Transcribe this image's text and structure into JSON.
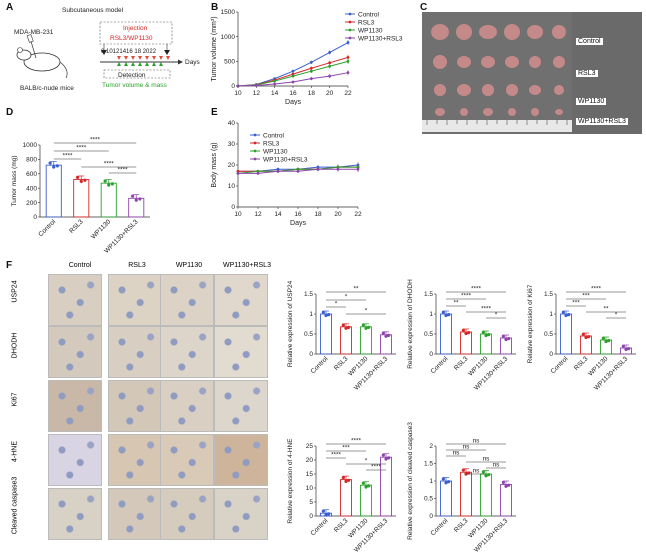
{
  "figure": {
    "panel_labels": [
      "A",
      "B",
      "C",
      "D",
      "E",
      "F"
    ]
  },
  "panel_a": {
    "title": "Subcutaneous model",
    "cell_line": "MDA-MB-231",
    "mouse": "BALB/c-nude mice",
    "injection_label": "Injection",
    "injection_drugs": "RSL3/WP1130",
    "timeline_ticks": "0  10121416 18  2022",
    "days_label": "Days",
    "detection_label": "Detection",
    "detection_sub": "Tumor volume & mass",
    "colors": {
      "injection": "#d62728",
      "detection": "#2ca02c",
      "marker": "#e0483a"
    }
  },
  "panel_c": {
    "row_labels": [
      "Control",
      "RSL3",
      "WP1130",
      "WP1130+RSL3"
    ],
    "tumor_color": "#c98b8b",
    "background": "#6a6a6a"
  },
  "panel_f": {
    "col_labels": [
      "Control",
      "RSL3",
      "WP1130",
      "WP1130+RSL3"
    ],
    "row_labels": [
      "USP24",
      "DHODH",
      "Ki67",
      "4-HNE",
      "Cleaved caspase3"
    ]
  },
  "chart_data": [
    {
      "id": "B",
      "type": "line",
      "ylabel": "Tumor volume (mm³)",
      "xlabel": "Days",
      "x": [
        10,
        12,
        14,
        16,
        18,
        20,
        22
      ],
      "ylim": [
        0,
        1500
      ],
      "yticks": [
        0,
        500,
        1000,
        1500
      ],
      "legend_position": "top-right",
      "series": [
        {
          "name": "Control",
          "color": "#3a5fcd",
          "values": [
            0,
            30,
            150,
            300,
            480,
            680,
            880
          ]
        },
        {
          "name": "RSL3",
          "color": "#d62728",
          "values": [
            0,
            25,
            120,
            240,
            360,
            470,
            580
          ]
        },
        {
          "name": "WP1130",
          "color": "#2ca02c",
          "values": [
            0,
            20,
            100,
            200,
            300,
            400,
            500
          ]
        },
        {
          "name": "WP1130+RSL3",
          "color": "#8e44ad",
          "values": [
            0,
            10,
            40,
            80,
            150,
            200,
            270
          ]
        }
      ]
    },
    {
      "id": "D",
      "type": "bar",
      "ylabel": "Tumor mass (mg)",
      "categories": [
        "Control",
        "RSL3",
        "WP1130",
        "WP1130+RSL3"
      ],
      "values": [
        720,
        520,
        470,
        260
      ],
      "colors": [
        "#3a5fcd",
        "#d62728",
        "#2ca02c",
        "#8e44ad"
      ],
      "ylim": [
        0,
        1000
      ],
      "yticks": [
        0,
        200,
        400,
        600,
        800,
        1000
      ],
      "significance": [
        "****",
        "****",
        "****",
        "****",
        "****"
      ]
    },
    {
      "id": "E",
      "type": "line",
      "ylabel": "Body mass (g)",
      "xlabel": "Days",
      "x": [
        10,
        12,
        14,
        16,
        18,
        20,
        22
      ],
      "ylim": [
        0,
        40
      ],
      "yticks": [
        0,
        10,
        20,
        30,
        40
      ],
      "legend_position": "top-left",
      "series": [
        {
          "name": "Control",
          "color": "#3a5fcd",
          "values": [
            17,
            17,
            18,
            18,
            19,
            19,
            20
          ]
        },
        {
          "name": "RSL3",
          "color": "#d62728",
          "values": [
            17,
            17,
            17,
            18,
            18,
            19,
            19
          ]
        },
        {
          "name": "WP1130",
          "color": "#2ca02c",
          "values": [
            16,
            17,
            17,
            18,
            18,
            19,
            19
          ]
        },
        {
          "name": "WP1130+RSL3",
          "color": "#8e44ad",
          "values": [
            16,
            16,
            17,
            17,
            18,
            18,
            18
          ]
        }
      ]
    },
    {
      "id": "F-USP24",
      "type": "bar",
      "ylabel": "Relative expression of USP24",
      "categories": [
        "Control",
        "RSL3",
        "WP1130",
        "WP1130+RSL3"
      ],
      "values": [
        1.0,
        0.68,
        0.68,
        0.48
      ],
      "colors": [
        "#3a5fcd",
        "#d62728",
        "#2ca02c",
        "#8e44ad"
      ],
      "ylim": [
        0,
        1.5
      ],
      "yticks": [
        0,
        0.5,
        1.0,
        1.5
      ],
      "significance": [
        "**",
        "*",
        "*",
        "*"
      ]
    },
    {
      "id": "F-DHODH",
      "type": "bar",
      "ylabel": "Relative expression of DHODH",
      "categories": [
        "Control",
        "RSL3",
        "WP1130",
        "WP1130+RSL3"
      ],
      "values": [
        1.0,
        0.55,
        0.5,
        0.4
      ],
      "colors": [
        "#3a5fcd",
        "#d62728",
        "#2ca02c",
        "#8e44ad"
      ],
      "ylim": [
        0,
        1.5
      ],
      "yticks": [
        0,
        0.5,
        1.0,
        1.5
      ],
      "significance": [
        "****",
        "****",
        "**",
        "****",
        "*"
      ]
    },
    {
      "id": "F-Ki67",
      "type": "bar",
      "ylabel": "Relative expression of Ki67",
      "categories": [
        "Control",
        "RSL3",
        "WP1130",
        "WP1130+RSL3"
      ],
      "values": [
        1.0,
        0.45,
        0.35,
        0.15
      ],
      "colors": [
        "#3a5fcd",
        "#d62728",
        "#2ca02c",
        "#8e44ad"
      ],
      "ylim": [
        0,
        1.5
      ],
      "yticks": [
        0,
        0.5,
        1.0,
        1.5
      ],
      "significance": [
        "****",
        "***",
        "***",
        "**",
        "*"
      ]
    },
    {
      "id": "F-4HNE",
      "type": "bar",
      "ylabel": "Relative expression of 4-HNE",
      "categories": [
        "Control",
        "RSL3",
        "WP1130",
        "WP1130+RSL3"
      ],
      "values": [
        1,
        13,
        11,
        21
      ],
      "colors": [
        "#3a5fcd",
        "#d62728",
        "#2ca02c",
        "#8e44ad"
      ],
      "ylim": [
        0,
        25
      ],
      "yticks": [
        0,
        5,
        10,
        15,
        20,
        25
      ],
      "significance": [
        "****",
        "***",
        "****",
        "*",
        "****"
      ]
    },
    {
      "id": "F-caspase3",
      "type": "bar",
      "ylabel": "Relative expression of cleaved caspase3",
      "categories": [
        "Control",
        "RSL3",
        "WP1130",
        "WP1130+RSL3"
      ],
      "values": [
        1.0,
        1.25,
        1.2,
        0.9
      ],
      "colors": [
        "#3a5fcd",
        "#d62728",
        "#2ca02c",
        "#8e44ad"
      ],
      "ylim": [
        0,
        2.0
      ],
      "yticks": [
        0,
        0.5,
        1.0,
        1.5,
        2.0
      ],
      "significance": [
        "ns",
        "ns",
        "ns",
        "ns",
        "ns",
        "ns"
      ]
    }
  ]
}
